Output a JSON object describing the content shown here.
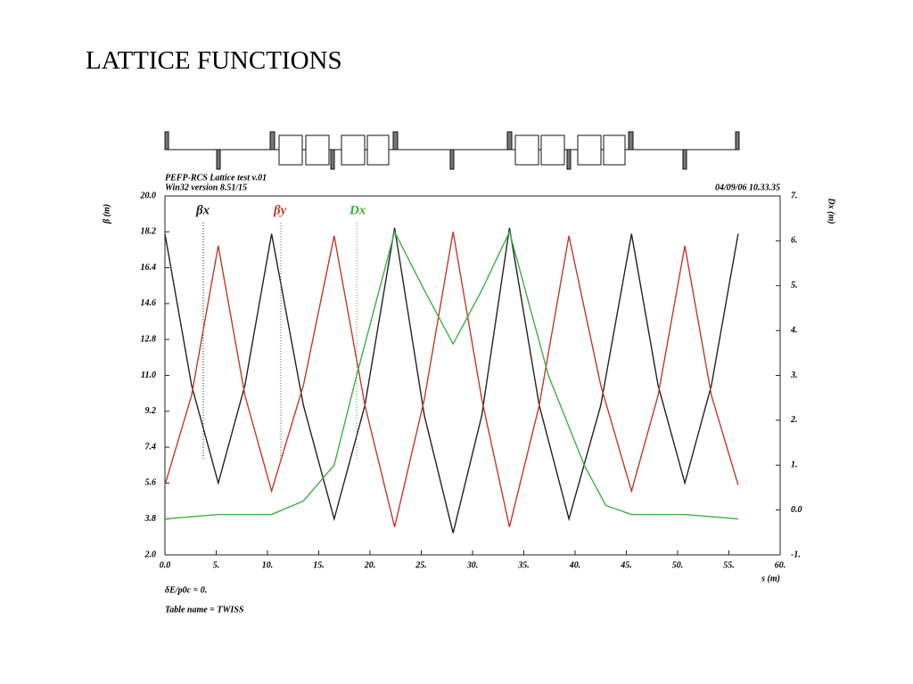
{
  "slide_title": "LATTICE FUNCTIONS",
  "chart_data": {
    "type": "line",
    "header": [
      "PEFP-RCS Lattice test v.01",
      "Win32 version 8.51/15"
    ],
    "timestamp": "04/09/06  10.33.35",
    "footer": [
      "δE/p0c  =  0.",
      "Table name = TWISS"
    ],
    "xlabel": "s (m)",
    "ylabel": "β (m)",
    "y2label": "Dx (m)",
    "xlim": [
      0,
      60
    ],
    "xticks": [
      {
        "value": 0,
        "label": "0.0"
      },
      {
        "value": 5,
        "label": "5."
      },
      {
        "value": 10,
        "label": "10."
      },
      {
        "value": 15,
        "label": "15."
      },
      {
        "value": 20,
        "label": "20."
      },
      {
        "value": 25,
        "label": "25."
      },
      {
        "value": 30,
        "label": "30."
      },
      {
        "value": 35,
        "label": "35."
      },
      {
        "value": 40,
        "label": "40."
      },
      {
        "value": 45,
        "label": "45."
      },
      {
        "value": 50,
        "label": "50."
      },
      {
        "value": 55,
        "label": "55."
      },
      {
        "value": 60,
        "label": "60."
      }
    ],
    "ylim": [
      2,
      20
    ],
    "yticks": [
      {
        "value": 2,
        "label": "2.0"
      },
      3.8,
      5.6,
      7.4,
      9.2,
      {
        "value": 11,
        "label": "11.0"
      },
      12.8,
      14.6,
      16.4,
      18.2,
      {
        "value": 20,
        "label": "20.0"
      }
    ],
    "y2lim": [
      -1,
      7
    ],
    "y2ticks": [
      {
        "value": -1,
        "label": "-1."
      },
      {
        "value": 0,
        "label": "0.0"
      },
      {
        "value": 1,
        "label": "1."
      },
      {
        "value": 2,
        "label": "2."
      },
      {
        "value": 3,
        "label": "3."
      },
      {
        "value": 4,
        "label": "4."
      },
      {
        "value": 5,
        "label": "5."
      },
      {
        "value": 6,
        "label": "6."
      },
      {
        "value": 7,
        "label": "7."
      }
    ],
    "series": [
      {
        "name": "βx",
        "color": "#222222",
        "x": [
          0,
          2.6,
          5.2,
          7.8,
          10.4,
          13.5,
          16.5,
          19.5,
          22.4,
          25.3,
          28.1,
          30.9,
          33.6,
          36.5,
          39.4,
          42.5,
          45.5,
          48.1,
          50.7,
          53.3,
          55.9
        ],
        "values": [
          18.1,
          10.5,
          5.6,
          10.5,
          18.1,
          9.5,
          3.8,
          9.5,
          18.4,
          9.0,
          3.1,
          9.0,
          18.4,
          9.5,
          3.8,
          9.5,
          18.1,
          10.5,
          5.6,
          10.5,
          18.1
        ]
      },
      {
        "name": "βy",
        "color": "#c0392b",
        "x": [
          0,
          2.6,
          5.2,
          7.8,
          10.4,
          13.5,
          16.5,
          19.5,
          22.4,
          25.3,
          28.1,
          30.9,
          33.6,
          36.5,
          39.4,
          42.5,
          45.5,
          48.1,
          50.7,
          53.3,
          55.9
        ],
        "values": [
          5.5,
          10,
          17.5,
          10,
          5.2,
          10.5,
          18.0,
          9.5,
          3.4,
          9.8,
          18.2,
          9.8,
          3.4,
          9.5,
          18.0,
          10.5,
          5.2,
          10,
          17.5,
          10,
          5.5
        ]
      },
      {
        "name": "Dx",
        "color": "#3cb043",
        "axis": "y2",
        "x": [
          0,
          5.2,
          10.4,
          13.5,
          16.5,
          18.7,
          22.4,
          25.3,
          28.1,
          30.9,
          33.6,
          37.4,
          40.9,
          43,
          45.5,
          50.7,
          55.9
        ],
        "values": [
          -0.2,
          -0.1,
          -0.1,
          0.2,
          1,
          3,
          6.2,
          4.9,
          3.7,
          4.9,
          6.2,
          3,
          1,
          0.1,
          -0.1,
          -0.1,
          -0.2
        ]
      }
    ]
  }
}
